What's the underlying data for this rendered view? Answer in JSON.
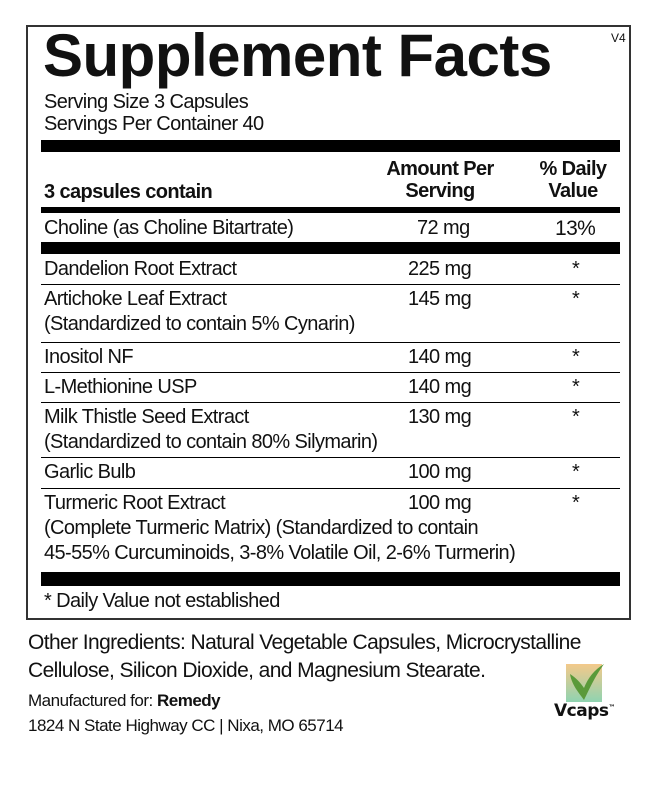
{
  "panel": {
    "title": "Supplement Facts",
    "version": "V4",
    "serving_size": "Serving Size 3 Capsules",
    "servings_per_container": "Servings Per Container  40",
    "header": {
      "contains": "3 capsules contain",
      "amount_line1": "Amount Per",
      "amount_line2": "Serving",
      "dv_line1": "% Daily",
      "dv_line2": "Value"
    },
    "featured": {
      "name": "Choline (as Choline Bitartrate)",
      "amount": "72 mg",
      "dv": "13%"
    },
    "rows": [
      {
        "name": "Dandelion Root Extract",
        "amount": "225 mg",
        "dv": "*"
      },
      {
        "name": "Artichoke Leaf Extract",
        "detail": "(Standardized to contain 5% Cynarin)",
        "amount": "145 mg",
        "dv": "*"
      },
      {
        "name": "Inositol NF",
        "amount": "140 mg",
        "dv": "*"
      },
      {
        "name": "L-Methionine USP",
        "amount": "140 mg",
        "dv": "*"
      },
      {
        "name": "Milk Thistle Seed Extract",
        "detail": "(Standardized to contain 80% Silymarin)",
        "amount": "130 mg",
        "dv": "*"
      },
      {
        "name": "Garlic Bulb",
        "amount": "100 mg",
        "dv": "*"
      },
      {
        "name": "Turmeric Root Extract",
        "detail": "(Complete Turmeric Matrix) (Standardized to contain",
        "detail2": "45-55% Curcuminoids, 3-8% Volatile Oil, 2-6% Turmerin)",
        "amount": "100 mg",
        "dv": "*"
      }
    ],
    "footnote": "* Daily Value not established"
  },
  "other_ingredients": {
    "line1": "Other Ingredients: Natural Vegetable Capsules, Microcrystalline",
    "line2": "Cellulose,  Silicon Dioxide, and Magnesium Stearate."
  },
  "manufacturer": {
    "label": "Manufactured for: ",
    "name": "Remedy",
    "address": "1824 N State Highway CC  |  Nixa, MO 65714"
  },
  "logo": {
    "text": "Vcaps",
    "tm": "™",
    "colors": {
      "leaf": "#5a9a3a",
      "bg_top": "#f3c98a",
      "bg_bottom": "#8fd3b0"
    }
  }
}
